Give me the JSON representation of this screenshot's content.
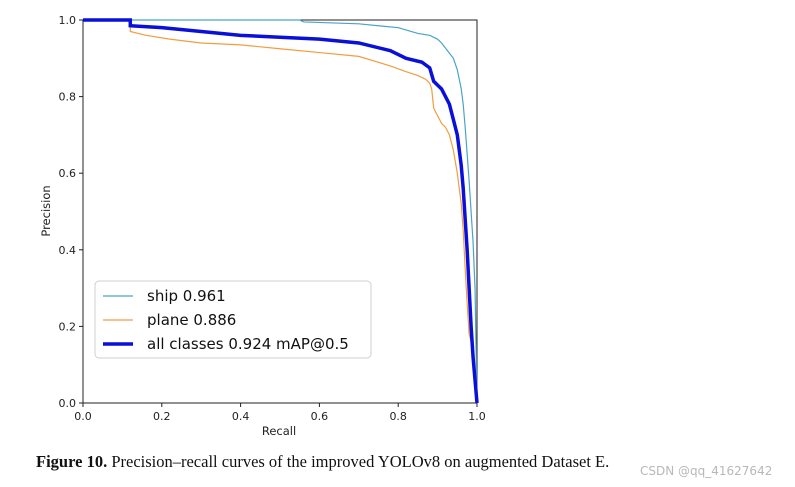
{
  "chart_data": {
    "type": "line",
    "title": "",
    "xlabel": "Recall",
    "ylabel": "Precision",
    "xlim": [
      0.0,
      1.0
    ],
    "ylim": [
      0.0,
      1.0
    ],
    "xticks": [
      "0.0",
      "0.2",
      "0.4",
      "0.6",
      "0.8",
      "1.0"
    ],
    "yticks": [
      "0.0",
      "0.2",
      "0.4",
      "0.6",
      "0.8",
      "1.0"
    ],
    "grid": false,
    "legend_position": "bottom-left",
    "series": [
      {
        "name": "ship",
        "legend_label": "ship 0.961",
        "color": "#4aa3c6",
        "width": 1.2,
        "points": [
          [
            0,
            1.0
          ],
          [
            0.55,
            1.0
          ],
          [
            0.56,
            0.995
          ],
          [
            0.7,
            0.99
          ],
          [
            0.8,
            0.98
          ],
          [
            0.85,
            0.965
          ],
          [
            0.88,
            0.96
          ],
          [
            0.9,
            0.95
          ],
          [
            0.91,
            0.94
          ],
          [
            0.925,
            0.92
          ],
          [
            0.94,
            0.9
          ],
          [
            0.95,
            0.87
          ],
          [
            0.96,
            0.82
          ],
          [
            0.965,
            0.78
          ],
          [
            0.97,
            0.72
          ],
          [
            0.975,
            0.65
          ],
          [
            0.98,
            0.58
          ],
          [
            0.985,
            0.5
          ],
          [
            0.99,
            0.42
          ],
          [
            0.995,
            0.3
          ],
          [
            1.0,
            0.0
          ]
        ]
      },
      {
        "name": "plane",
        "legend_label": "plane 0.886",
        "color": "#f39c40",
        "width": 1.2,
        "points": [
          [
            0,
            1.0
          ],
          [
            0.12,
            1.0
          ],
          [
            0.12,
            0.97
          ],
          [
            0.16,
            0.96
          ],
          [
            0.22,
            0.95
          ],
          [
            0.3,
            0.94
          ],
          [
            0.4,
            0.935
          ],
          [
            0.5,
            0.925
          ],
          [
            0.6,
            0.915
          ],
          [
            0.7,
            0.905
          ],
          [
            0.78,
            0.88
          ],
          [
            0.82,
            0.865
          ],
          [
            0.85,
            0.855
          ],
          [
            0.87,
            0.845
          ],
          [
            0.88,
            0.835
          ],
          [
            0.885,
            0.82
          ],
          [
            0.89,
            0.77
          ],
          [
            0.9,
            0.75
          ],
          [
            0.91,
            0.73
          ],
          [
            0.92,
            0.72
          ],
          [
            0.93,
            0.7
          ],
          [
            0.94,
            0.66
          ],
          [
            0.95,
            0.6
          ],
          [
            0.96,
            0.52
          ],
          [
            0.965,
            0.45
          ],
          [
            0.97,
            0.35
          ],
          [
            0.975,
            0.26
          ],
          [
            0.98,
            0.18
          ],
          [
            0.985,
            0.16
          ],
          [
            1.0,
            0.0
          ]
        ]
      },
      {
        "name": "all classes",
        "legend_label": "all classes 0.924 mAP@0.5",
        "color": "#0a10d8",
        "width": 3.5,
        "points": [
          [
            0,
            1.0
          ],
          [
            0.12,
            1.0
          ],
          [
            0.12,
            0.985
          ],
          [
            0.2,
            0.98
          ],
          [
            0.3,
            0.97
          ],
          [
            0.4,
            0.96
          ],
          [
            0.5,
            0.955
          ],
          [
            0.6,
            0.95
          ],
          [
            0.7,
            0.94
          ],
          [
            0.78,
            0.92
          ],
          [
            0.82,
            0.9
          ],
          [
            0.86,
            0.89
          ],
          [
            0.88,
            0.875
          ],
          [
            0.89,
            0.84
          ],
          [
            0.9,
            0.83
          ],
          [
            0.91,
            0.82
          ],
          [
            0.92,
            0.8
          ],
          [
            0.93,
            0.78
          ],
          [
            0.94,
            0.74
          ],
          [
            0.95,
            0.7
          ],
          [
            0.955,
            0.66
          ],
          [
            0.96,
            0.62
          ],
          [
            0.965,
            0.56
          ],
          [
            0.97,
            0.48
          ],
          [
            0.975,
            0.4
          ],
          [
            0.98,
            0.3
          ],
          [
            0.985,
            0.2
          ],
          [
            0.99,
            0.12
          ],
          [
            1.0,
            0.0
          ]
        ]
      }
    ]
  },
  "caption": {
    "label": "Figure 10.",
    "text": " Precision–recall curves of the improved YOLOv8 on augmented Dataset E."
  },
  "watermark": "CSDN @qq_41627642"
}
